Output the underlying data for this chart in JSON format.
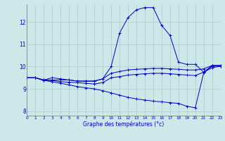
{
  "xlabel": "Graphe des températures (°c)",
  "xlim": [
    0,
    23
  ],
  "ylim": [
    7.8,
    12.8
  ],
  "yticks": [
    8,
    9,
    10,
    11,
    12
  ],
  "xticks": [
    0,
    1,
    2,
    3,
    4,
    5,
    6,
    7,
    8,
    9,
    10,
    11,
    12,
    13,
    14,
    15,
    16,
    17,
    18,
    19,
    20,
    21,
    22,
    23
  ],
  "background_color": "#cce8e8",
  "line_color": "#0000cc",
  "grid_color": "#aacccc",
  "series": [
    {
      "x": [
        0,
        1,
        2,
        3,
        4,
        5,
        6,
        7,
        8,
        9,
        10,
        11,
        12,
        13,
        14,
        15,
        16,
        17,
        18,
        19,
        20,
        21,
        22,
        23
      ],
      "y": [
        9.5,
        9.5,
        9.4,
        9.5,
        9.45,
        9.4,
        9.35,
        9.35,
        9.35,
        9.45,
        10.0,
        11.5,
        12.2,
        12.55,
        12.65,
        12.65,
        11.85,
        11.4,
        10.2,
        10.1,
        10.1,
        9.75,
        10.05,
        10.05
      ]
    },
    {
      "x": [
        0,
        1,
        2,
        3,
        4,
        5,
        6,
        7,
        8,
        9,
        10,
        11,
        12,
        13,
        14,
        15,
        16,
        17,
        18,
        19,
        20,
        21,
        22,
        23
      ],
      "y": [
        9.5,
        9.5,
        9.4,
        9.4,
        9.4,
        9.4,
        9.35,
        9.35,
        9.35,
        9.45,
        9.7,
        9.78,
        9.85,
        9.88,
        9.9,
        9.92,
        9.92,
        9.9,
        9.88,
        9.85,
        9.85,
        9.9,
        10.05,
        10.05
      ]
    },
    {
      "x": [
        0,
        1,
        2,
        3,
        4,
        5,
        6,
        7,
        8,
        9,
        10,
        11,
        12,
        13,
        14,
        15,
        16,
        17,
        18,
        19,
        20,
        21,
        22,
        23
      ],
      "y": [
        9.5,
        9.5,
        9.38,
        9.38,
        9.32,
        9.3,
        9.28,
        9.25,
        9.22,
        9.28,
        9.5,
        9.55,
        9.62,
        9.65,
        9.68,
        9.7,
        9.7,
        9.68,
        9.65,
        9.62,
        9.6,
        9.75,
        9.95,
        10.02
      ]
    },
    {
      "x": [
        0,
        1,
        2,
        3,
        4,
        5,
        6,
        7,
        8,
        9,
        10,
        11,
        12,
        13,
        14,
        15,
        16,
        17,
        18,
        19,
        20,
        21,
        22,
        23
      ],
      "y": [
        9.5,
        9.5,
        9.38,
        9.32,
        9.25,
        9.18,
        9.1,
        9.05,
        9.0,
        8.92,
        8.82,
        8.72,
        8.62,
        8.55,
        8.5,
        8.45,
        8.42,
        8.38,
        8.35,
        8.22,
        8.15,
        9.72,
        10.02,
        10.02
      ]
    }
  ]
}
